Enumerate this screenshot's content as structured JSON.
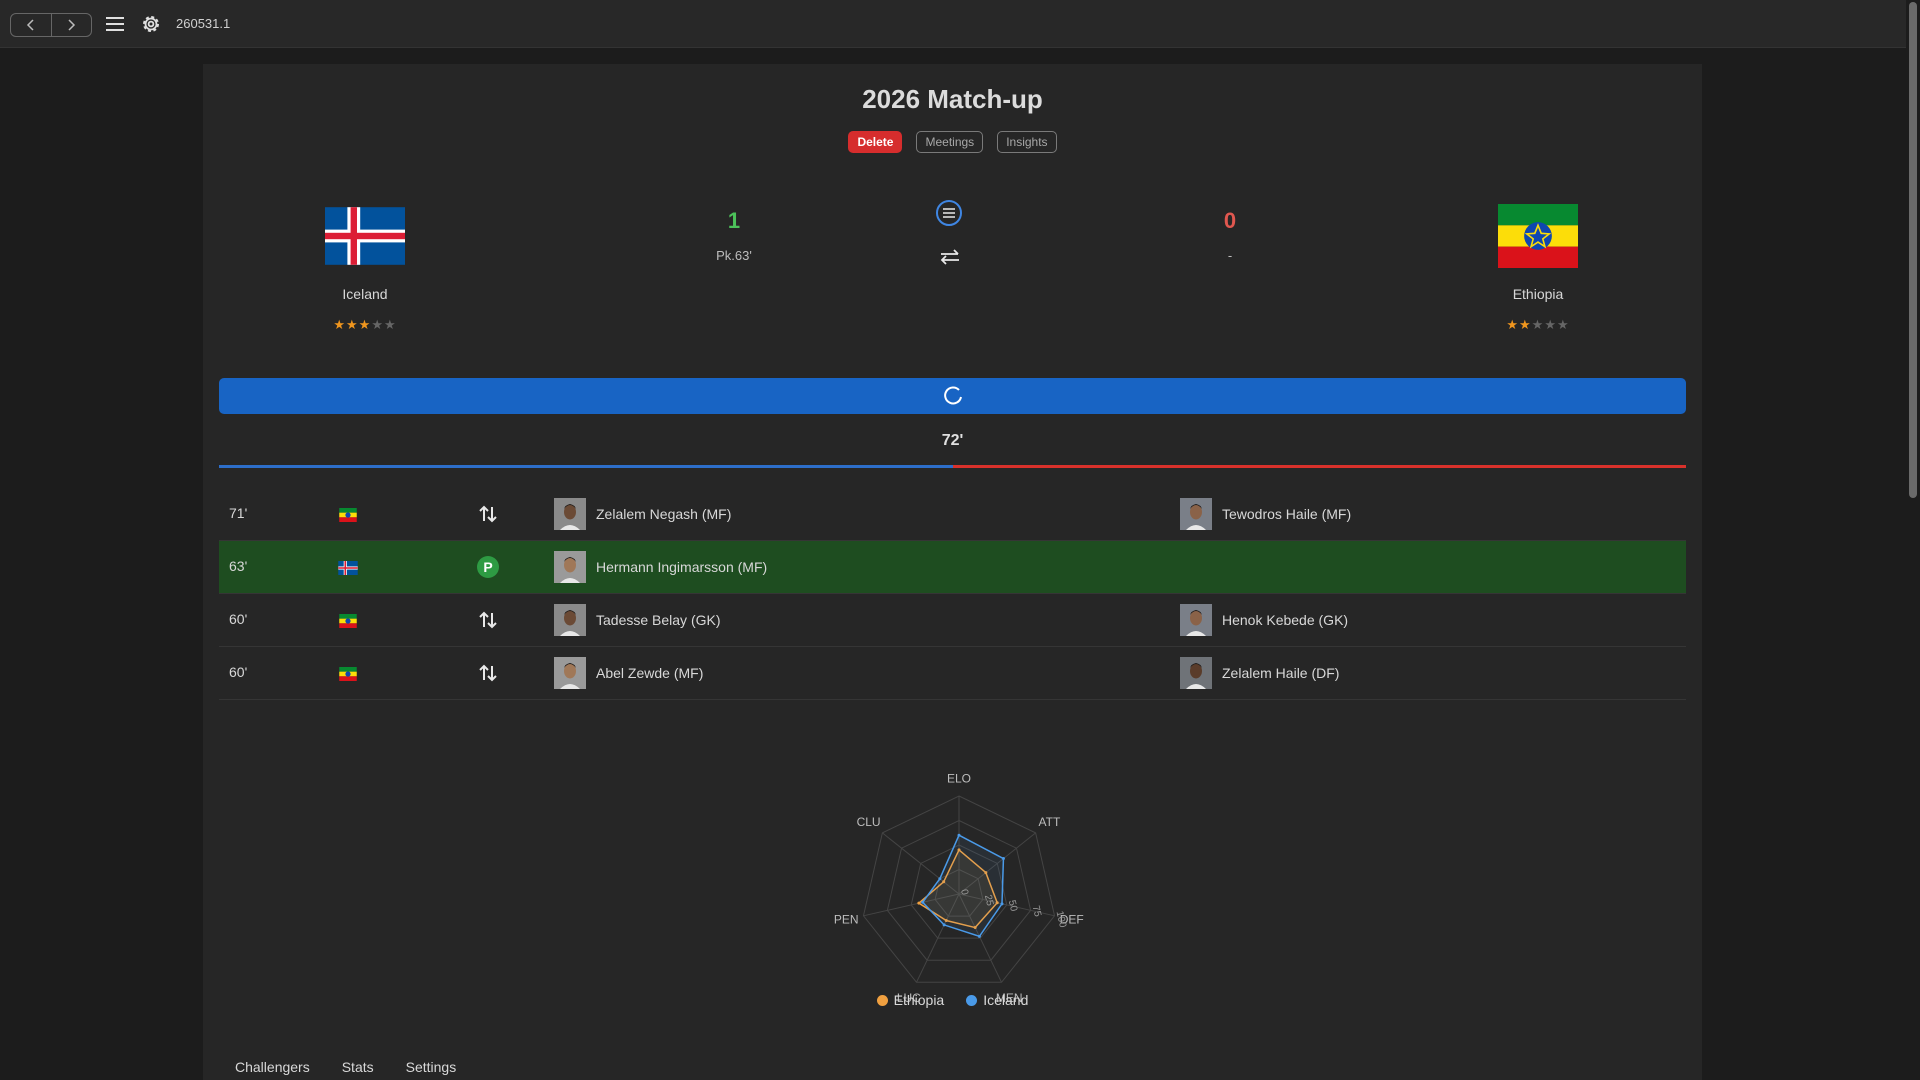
{
  "app": {
    "version": "260531.1"
  },
  "match": {
    "title": "2026 Match-up",
    "actions": {
      "delete": "Delete",
      "meetings": "Meetings",
      "insights": "Insights"
    },
    "home": {
      "name": "Iceland",
      "score": "1",
      "scorers": "Pk.63'",
      "stars": 3,
      "max_stars": 5,
      "flag_icon": "iceland-flag"
    },
    "away": {
      "name": "Ethiopia",
      "score": "0",
      "scorers": "-",
      "stars": 2,
      "max_stars": 5,
      "flag_icon": "ethiopia-flag"
    },
    "current_minute": "72'",
    "colors": {
      "home": "#2d6ec9",
      "away": "#d8312b",
      "progress": "#1864c4",
      "highlight": "#1e4d20"
    }
  },
  "events": [
    {
      "minute": "71'",
      "team": "ethiopia",
      "type": "substitution",
      "player_in": "Zelalem Negash (MF)",
      "player_out": "Tewodros Haile (MF)"
    },
    {
      "minute": "63'",
      "team": "iceland",
      "type": "penalty-goal",
      "badge": "P",
      "player_in": "Hermann Ingimarsson (MF)",
      "player_out": ""
    },
    {
      "minute": "60'",
      "team": "ethiopia",
      "type": "substitution",
      "player_in": "Tadesse Belay (GK)",
      "player_out": "Henok Kebede (GK)"
    },
    {
      "minute": "60'",
      "team": "ethiopia",
      "type": "substitution",
      "player_in": "Abel Zewde (MF)",
      "player_out": "Zelalem Haile (DF)"
    }
  ],
  "chart_data": {
    "type": "radar",
    "axes": [
      "ELO",
      "ATT",
      "DEF",
      "MEN",
      "LUC",
      "PEN",
      "CLU"
    ],
    "range": [
      0,
      100
    ],
    "ticks": [
      "0",
      "25",
      "50",
      "75",
      "100"
    ],
    "series": [
      {
        "name": "Ethiopia",
        "color": "#f0a040",
        "values": [
          45,
          35,
          40,
          38,
          30,
          42,
          20
        ]
      },
      {
        "name": "Iceland",
        "color": "#4a9ae8",
        "values": [
          60,
          58,
          45,
          48,
          35,
          38,
          25
        ]
      }
    ],
    "legend": "bottom"
  },
  "tabs": [
    "Challengers",
    "Stats",
    "Settings"
  ]
}
